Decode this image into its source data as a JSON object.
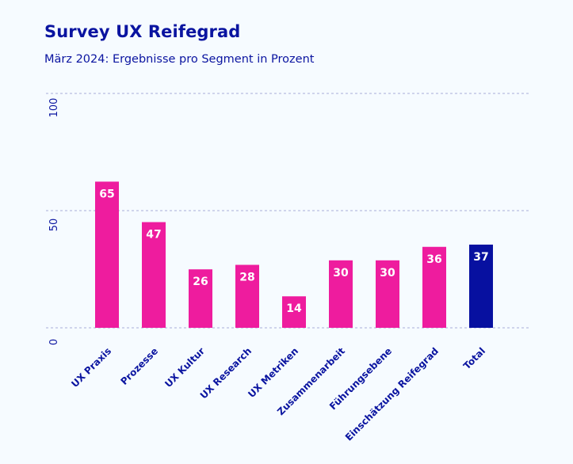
{
  "chart_data": {
    "type": "bar",
    "title": "Survey UX Reifegrad",
    "subtitle": "März 2024: Ergebnisse pro Segment in Prozent",
    "xlabel": "",
    "ylabel": "",
    "ylim": [
      0,
      100
    ],
    "yticks": [
      0,
      50,
      100
    ],
    "ytick_labels": [
      "0",
      "50",
      "100"
    ],
    "grid": true,
    "categories": [
      "UX Praxis",
      "Prozesse",
      "UX Kultur",
      "UX Research",
      "UX Metriken",
      "Zusammenarbeit",
      "Führungsebene",
      "Einschätzung Reifegrad",
      "Total"
    ],
    "values": [
      65,
      47,
      26,
      28,
      14,
      30,
      30,
      36,
      37
    ],
    "data_labels": [
      "65",
      "47",
      "26",
      "28",
      "14",
      "30",
      "30",
      "36",
      "37"
    ],
    "colors": {
      "segment": "#ee1c9e",
      "total": "#0710a0",
      "text": "#0a14a0",
      "grid": "#a8acd8"
    },
    "highlight_category": "Total"
  }
}
